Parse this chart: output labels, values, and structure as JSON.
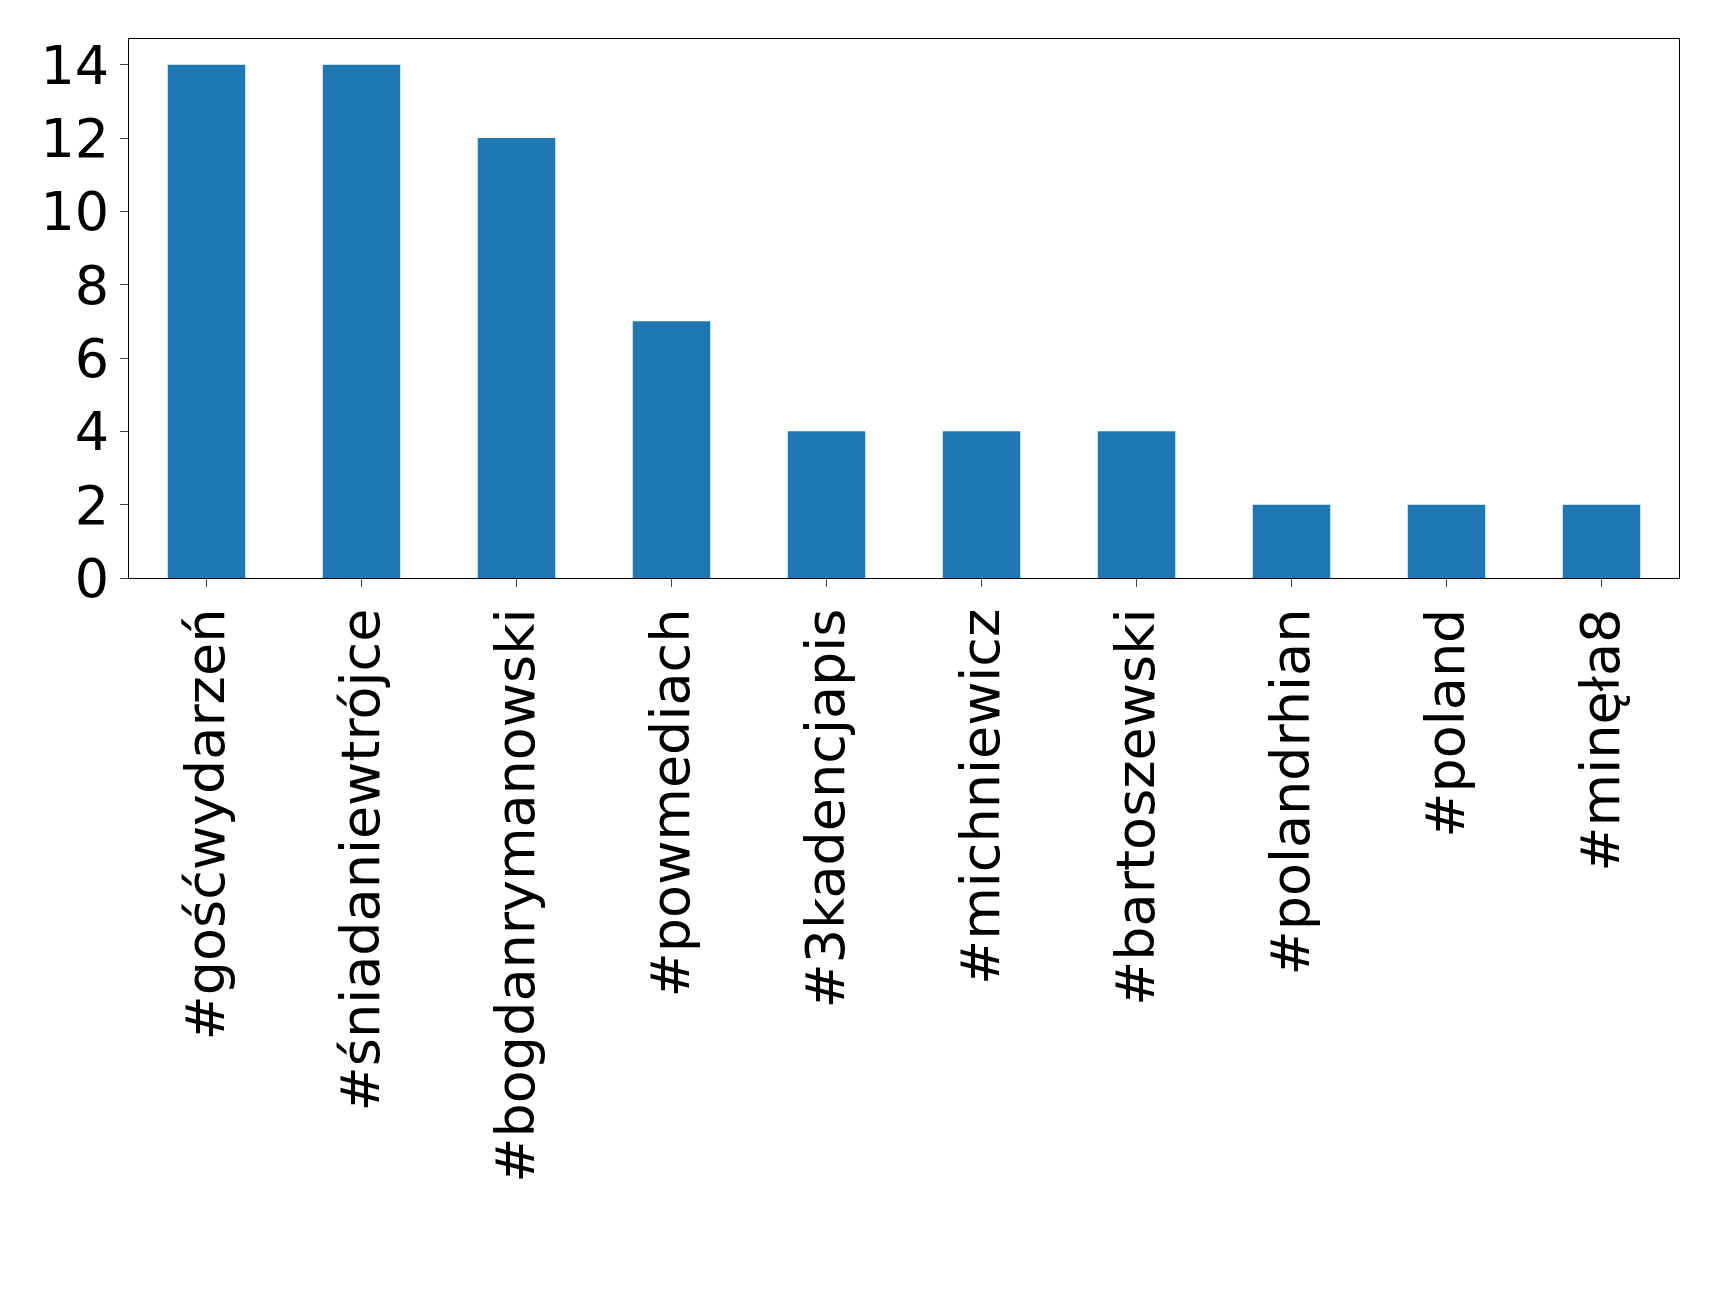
{
  "chart_data": {
    "type": "bar",
    "categories": [
      "#gośćwydarzeń",
      "#śniadaniewtrójce",
      "#bogdanrymanowski",
      "#powmediach",
      "#3kadencjapis",
      "#michniewicz",
      "#bartoszewski",
      "#polandrhian",
      "#poland",
      "#minęła8"
    ],
    "values": [
      14,
      14,
      12,
      7,
      4,
      4,
      4,
      2,
      2,
      2
    ],
    "color": "#1f77b4",
    "ylim": [
      0,
      14.7
    ],
    "yticks": [
      0,
      2,
      4,
      6,
      8,
      10,
      12,
      14
    ]
  }
}
